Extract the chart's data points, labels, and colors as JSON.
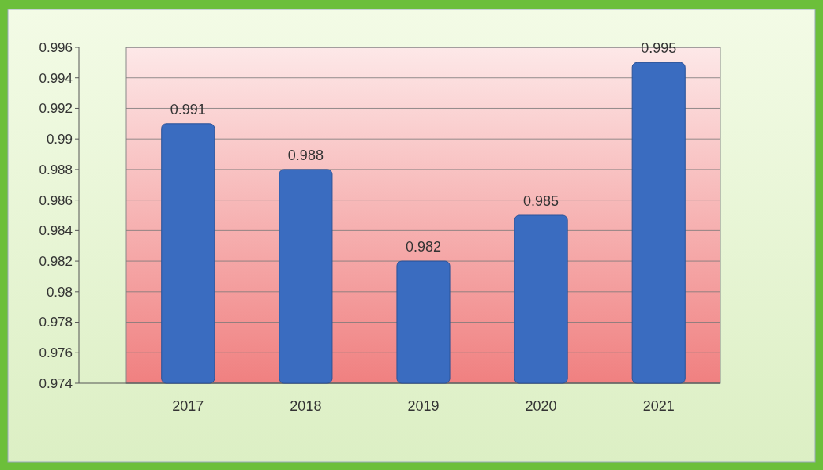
{
  "chart_data": {
    "type": "bar",
    "categories": [
      "2017",
      "2018",
      "2019",
      "2020",
      "2021"
    ],
    "values": [
      0.991,
      0.988,
      0.982,
      0.985,
      0.995
    ],
    "color": "#3a6cc0",
    "ylim": [
      0.974,
      0.996
    ],
    "yticks": [
      0.974,
      0.976,
      0.978,
      0.98,
      0.982,
      0.984,
      0.986,
      0.988,
      0.99,
      0.992,
      0.994,
      0.996
    ],
    "grid": "y",
    "data_labels": true
  }
}
